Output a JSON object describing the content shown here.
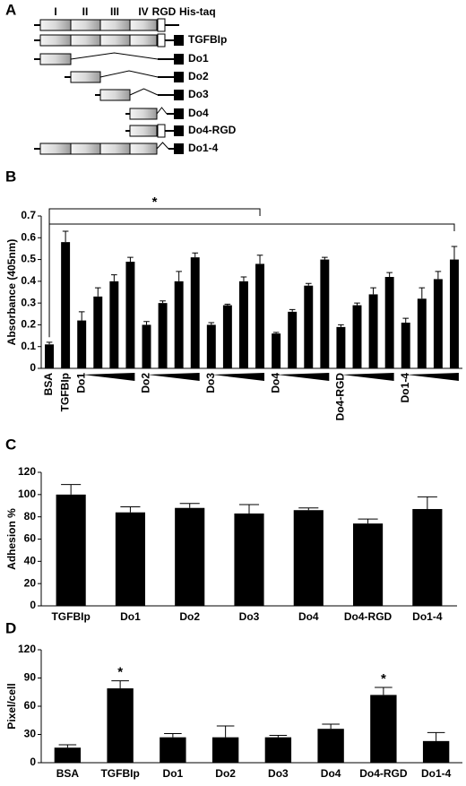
{
  "diagram": {
    "panel": "A",
    "headers": [
      "I",
      "II",
      "III",
      "IV",
      "RGD",
      "His-taq"
    ],
    "constructs": [
      "TGFBIp",
      "Do1",
      "Do2",
      "Do3",
      "Do4",
      "Do4-RGD",
      "Do1-4"
    ]
  },
  "chart_data": [
    {
      "type": "bar",
      "panel": "B",
      "ylabel": "Absorbance (405nm)",
      "annotation": "*",
      "categories": [
        "BSA",
        "TGFBIp",
        "Do1",
        null,
        null,
        null,
        "Do2",
        null,
        null,
        null,
        "Do3",
        null,
        null,
        null,
        "Do4",
        null,
        null,
        null,
        "Do4-RGD",
        null,
        null,
        null,
        "Do1-4",
        null,
        null,
        null
      ],
      "values": [
        0.11,
        0.58,
        0.22,
        0.33,
        0.4,
        0.49,
        0.2,
        0.3,
        0.4,
        0.51,
        0.2,
        0.29,
        0.4,
        0.48,
        0.16,
        0.26,
        0.38,
        0.5,
        0.19,
        0.29,
        0.34,
        0.42,
        0.21,
        0.32,
        0.41,
        0.5
      ],
      "errors": [
        0.01,
        0.05,
        0.04,
        0.04,
        0.03,
        0.02,
        0.015,
        0.01,
        0.045,
        0.02,
        0.01,
        0.005,
        0.02,
        0.04,
        0.005,
        0.01,
        0.01,
        0.01,
        0.01,
        0.01,
        0.03,
        0.02,
        0.02,
        0.05,
        0.035,
        0.06
      ],
      "color": "#000000",
      "ylim": [
        0,
        0.7
      ],
      "yticks": [
        0,
        0.1,
        0.2,
        0.3,
        0.4,
        0.5,
        0.6,
        0.7
      ]
    },
    {
      "type": "bar",
      "panel": "C",
      "ylabel": "Adhesion %",
      "categories": [
        "TGFBIp",
        "Do1",
        "Do2",
        "Do3",
        "Do4",
        "Do4-RGD",
        "Do1-4"
      ],
      "values": [
        100,
        84,
        88,
        83,
        86,
        74,
        87
      ],
      "errors": [
        9,
        5,
        4,
        8,
        2,
        4,
        11
      ],
      "color": "#000000",
      "ylim": [
        0,
        120
      ],
      "yticks": [
        0,
        20,
        40,
        60,
        80,
        100,
        120
      ]
    },
    {
      "type": "bar",
      "panel": "D",
      "ylabel": "Pixel/cell",
      "categories": [
        "BSA",
        "TGFBIp",
        "Do1",
        "Do2",
        "Do3",
        "Do4",
        "Do4-RGD",
        "Do1-4"
      ],
      "values": [
        16,
        79,
        27,
        27,
        27,
        36,
        72,
        23
      ],
      "errors": [
        3,
        8,
        4,
        12,
        2,
        5,
        8,
        9
      ],
      "annotations": [
        {
          "label": "*",
          "x": "TGFBIp"
        },
        {
          "label": "*",
          "x": "Do4-RGD"
        }
      ],
      "color": "#000000",
      "ylim": [
        0,
        120
      ],
      "yticks": [
        0,
        30,
        60,
        90,
        120
      ]
    }
  ]
}
